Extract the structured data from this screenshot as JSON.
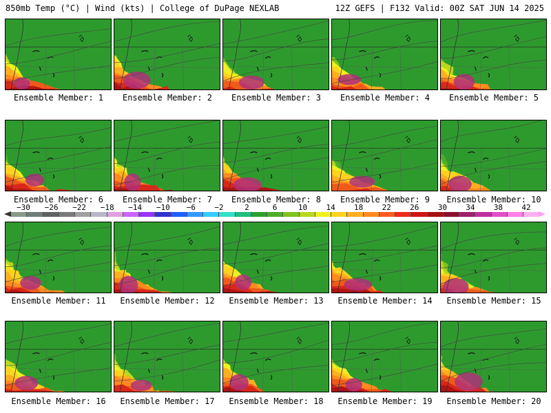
{
  "header": {
    "left": "850mb Temp (°C) | Wind (kts) | College of DuPage NEXLAB",
    "right": "12Z GEFS | F132 Valid: 00Z SAT JUN 14 2025"
  },
  "members": [
    {
      "label": "Ensemble Member: 1"
    },
    {
      "label": "Ensemble Member: 2"
    },
    {
      "label": "Ensemble Member: 3"
    },
    {
      "label": "Ensemble Member: 4"
    },
    {
      "label": "Ensemble Member: 5"
    },
    {
      "label": "Ensemble Member: 6"
    },
    {
      "label": "Ensemble Member: 7"
    },
    {
      "label": "Ensemble Member: 8"
    },
    {
      "label": "Ensemble Member: 9"
    },
    {
      "label": "Ensemble Member: 10"
    },
    {
      "label": "Ensemble Member: 11"
    },
    {
      "label": "Ensemble Member: 12"
    },
    {
      "label": "Ensemble Member: 13"
    },
    {
      "label": "Ensemble Member: 14"
    },
    {
      "label": "Ensemble Member: 15"
    },
    {
      "label": "Ensemble Member: 16"
    },
    {
      "label": "Ensemble Member: 17"
    },
    {
      "label": "Ensemble Member: 18"
    },
    {
      "label": "Ensemble Member: 19"
    },
    {
      "label": "Ensemble Member: 20"
    }
  ],
  "legend": {
    "labels": [
      "−30",
      "−26",
      "−22",
      "−18",
      "−14",
      "−10",
      "−6",
      "−2",
      "2",
      "6",
      "10",
      "14",
      "18",
      "22",
      "26",
      "30",
      "34",
      "38",
      "42"
    ],
    "colors": [
      "#8a9a8a",
      "#6e7e76",
      "#5f6462",
      "#7a7a7a",
      "#a0a0a0",
      "#b8b8c8",
      "#e0a0e0",
      "#cc66ff",
      "#9933ff",
      "#3333cc",
      "#1f5fff",
      "#3399ff",
      "#33ccff",
      "#33e0cc",
      "#1fbf7f",
      "#2ea02e",
      "#4caf2a",
      "#7ec41f",
      "#b8d81f",
      "#eef01f",
      "#ffd21f",
      "#ffae1f",
      "#ff8a1f",
      "#ff5a1f",
      "#f02a1a",
      "#d01414",
      "#a51010",
      "#8a1030",
      "#a0206a",
      "#c030a0",
      "#e050c8",
      "#ff80e8",
      "#ffb0f0"
    ]
  }
}
